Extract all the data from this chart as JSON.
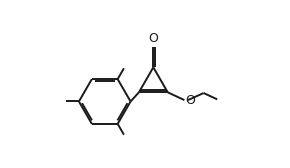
{
  "bg_color": "#ffffff",
  "line_color": "#1a1a1a",
  "bond_lw": 1.4,
  "font_size": 9,
  "fig_width": 2.9,
  "fig_height": 1.68
}
